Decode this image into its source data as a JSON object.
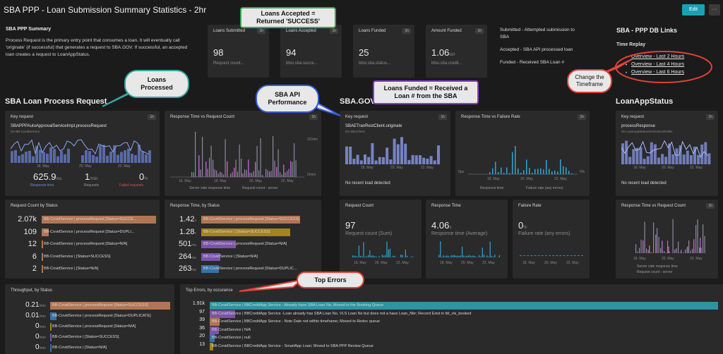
{
  "header": {
    "title": "SBA PPP - Loan Submission Summary Statistics - 2hr",
    "edit_label": "Edit",
    "more_label": "···"
  },
  "summary": {
    "title": "SBA PPP Summary",
    "text": "Process Request is the primary entry point that consumes a loan. It will eventually call 'originate' (if successful) that generates a request to SBA.GOV. If successful, an accepted loan creates a request to LoanAppStatus."
  },
  "kpis": [
    {
      "title": "Loans Submitted",
      "value": "98",
      "unit": "",
      "sub": "Request count...",
      "badge": "1h"
    },
    {
      "title": "Loans Accepted",
      "value": "94",
      "unit": "",
      "sub": "bbsi.sba.succe...",
      "badge": "1h"
    },
    {
      "title": "Loans Funded",
      "value": "25",
      "unit": "",
      "sub": "bbsi.sba.status...",
      "badge": "1h"
    },
    {
      "title": "Amount Funded",
      "value": "1.06",
      "unit": "mil",
      "sub": "bbsi.sba.credit...",
      "badge": "1h"
    }
  ],
  "legend_text": {
    "submitted": "Submitted - Attempted submission to SBA",
    "accepted": "Accepted - SBA API processed loan",
    "funded": "Funded - Received SBA Loan #"
  },
  "db_links": {
    "title": "SBA - PPP DB Links",
    "time_replay": "Time Replay",
    "links": [
      "Overview - Last 2 Hours",
      "Overview - Last 4 Hours",
      "Overview - Last 6 Hours"
    ]
  },
  "sections": {
    "sba_loan": "SBA Loan Process Request",
    "sba_gov": "SBA.GOV",
    "loanapp": "LoanAppStatus"
  },
  "callouts": {
    "loans_accepted": "Loans Accepted =\nReturned 'SUCCESS'",
    "loans_processed": "Loans\nProcessed",
    "sba_api": "SBA API\nPerformance",
    "loans_funded": "Loans Funded = Received a\nLoan # from the SBA",
    "change_timeframe": "Change the\nTimeframe",
    "top_errors": "Top Errors"
  },
  "key_request_1": {
    "title": "Key request",
    "name": "SBAPPPAutoApprovalServiceImpl.processRequest",
    "on": "On BB-CovidService",
    "badge": "1h",
    "response_time": "625.9",
    "response_unit": "ms",
    "requests": "1",
    "requests_unit": "/min",
    "failed": "0",
    "failed_unit": "%",
    "rt_label": "Response time",
    "req_label": "Requests",
    "fail_label": "Failed requests",
    "dates": [
      "18. May",
      "20. May",
      "22. May"
    ]
  },
  "rt_vs_count_1": {
    "title": "Response Time vs Request Count",
    "badge": "1h",
    "y_right": [
      "22/min",
      "0/min"
    ],
    "x": [
      "16. May",
      "18. May",
      "20. May",
      "22. May"
    ],
    "leg1": "Server side response time",
    "leg2": "Request count - server"
  },
  "key_request_2": {
    "title": "Key request",
    "name": "SBAETranRestClient.originate",
    "on": "On SBAClient",
    "badge": "1h",
    "no_load": "No recent load detected",
    "x": [
      "18. May",
      "20. May",
      "22. May"
    ]
  },
  "rt_vs_failure": {
    "title": "Response Time vs Failure Rate",
    "badge": "1h",
    "y_left": "0μs",
    "y_right": "0%",
    "x": [
      "18. May",
      "20. May",
      "22. May"
    ],
    "leg1": "Response time",
    "leg2": "Failure rate (any errors)"
  },
  "key_request_3": {
    "title": "Key request",
    "name": "processResponse",
    "on": "On LoanAppStatusServiceController",
    "badge": "1h",
    "no_load": "No recent load detected",
    "x": [
      "18. May",
      "20. May",
      "22. May"
    ]
  },
  "count_by_status": {
    "title": "Request Count by Status",
    "rows": [
      {
        "value": "2.07k",
        "label": "BB-CovidService | processRequest [Status=SUCCE...",
        "color": "#c9825a",
        "fill": 1.0
      },
      {
        "value": "109",
        "label": "BB-CovidService | processRequest [Status=DUPLI...",
        "color": "#c9825a",
        "fill": 0.06
      },
      {
        "value": "12",
        "label": "BB-CovidService | processRequest [Status=N/A]",
        "color": "#c9825a",
        "fill": 0.01
      },
      {
        "value": "6",
        "label": "BB-CovidService | [Status=SUCCESS]",
        "color": "#c9825a",
        "fill": 0.005
      },
      {
        "value": "2",
        "label": "BB-CovidService | [Status=N/A]",
        "color": "#c9825a",
        "fill": 0.002
      }
    ]
  },
  "rt_by_status": {
    "title": "Response Time, by Status",
    "rows": [
      {
        "value": "1.42",
        "unit": "s",
        "label": "BB-CovidService | processRequest [Status=SUCCESS]",
        "color": "#c9825a",
        "fill": 1.0
      },
      {
        "value": "1.28",
        "unit": "s",
        "label": "BB-CovidService | [Status=SUCCESS]",
        "color": "#b8931a",
        "fill": 0.9
      },
      {
        "value": "501",
        "unit": "ms",
        "label": "BB-CovidService | processRequest [Status=N/A]",
        "color": "#8a5cc0",
        "fill": 0.35
      },
      {
        "value": "264",
        "unit": "ms",
        "label": "BB-CovidService | [Status=N/A]",
        "color": "#8a5cc0",
        "fill": 0.19
      },
      {
        "value": "263",
        "unit": "ms",
        "label": "BB-CovidService | processRequest [Status=DUPLIC...",
        "color": "#3a7fc0",
        "fill": 0.18
      }
    ]
  },
  "request_count": {
    "title": "Request Count",
    "value": "97",
    "sub": "Request count (Sum)",
    "x": [
      "18. May",
      "20. May",
      "22. May"
    ]
  },
  "response_time": {
    "title": "Response Time",
    "value": "4.06",
    "unit": "s",
    "sub": "Response time (Average)",
    "x": [
      "18. May",
      "20. May",
      "22. May"
    ]
  },
  "failure_rate": {
    "title": "Failure Rate",
    "value": "0",
    "unit": "%",
    "sub": "Failure rate (any errors)",
    "x": [
      "18. May",
      "20. May",
      "22. May"
    ]
  },
  "rt_vs_count_2": {
    "title": "Response Time vs Request Count",
    "badge": "1h",
    "x": [
      "18. May",
      "20. May",
      "22. May"
    ],
    "leg1": "Server side response time",
    "leg2": "Request count - server"
  },
  "throughput": {
    "title": "Throughput, by Status",
    "rows": [
      {
        "value": "0.21",
        "unit": "/min",
        "label": "BB-CovidService | processRequest [Status=SUCCESS]",
        "color": "#c9825a",
        "fill": 1.0
      },
      {
        "value": "0.01",
        "unit": "/min",
        "label": "BB-CovidService | processRequest [Status=DUPLICATE]",
        "color": "#3a7fc0",
        "fill": 0.05
      },
      {
        "value": "0",
        "unit": "/min",
        "label": "BB-CovidService | processRequest [Status=N/A]",
        "color": "#b8931a",
        "fill": 0.0
      },
      {
        "value": "0",
        "unit": "/min",
        "label": "BB-CovidService | [Status=SUCCESS]",
        "color": "#8a5cc0",
        "fill": 0.0
      },
      {
        "value": "0",
        "unit": "/min",
        "label": "BB-CovidService | [Status=N/A]",
        "color": "#3a7fc0",
        "fill": 0.0
      }
    ]
  },
  "top_errors": {
    "title": "Top Errors, by occurance",
    "rows": [
      {
        "value": "1.91k",
        "label": "BB-CovidService | BBCreditApp Service - Already have SBA Loan No, Moved to the Booking Queue",
        "color": "#2fa6b8",
        "fill": 1.0
      },
      {
        "value": "97",
        "label": "BB-CovidService | BBCreditApp Service -Loan already has SBA Loan No, VLS Loan No but does not a have Loan_Nbr; Record Exist in tbl_vls_booked",
        "color": "#8a5cc0",
        "fill": 0.05
      },
      {
        "value": "39",
        "label": "BB-CovidService | BBCreditApp Service - Note Date not within timeframe; Moved to Redoc queue",
        "color": "#c9825a",
        "fill": 0.02
      },
      {
        "value": "36",
        "label": "BB-CovidService | N/A",
        "color": "#8a5cc0",
        "fill": 0.018
      },
      {
        "value": "20",
        "label": "BB-CovidService | null",
        "color": "#3a7fc0",
        "fill": 0.01
      },
      {
        "value": "13",
        "label": "BB-CovidService | BBCreditApp Service - SmartApp Loan; Moved to SBA PPP Review Queue",
        "color": "#b8931a",
        "fill": 0.007
      }
    ]
  }
}
